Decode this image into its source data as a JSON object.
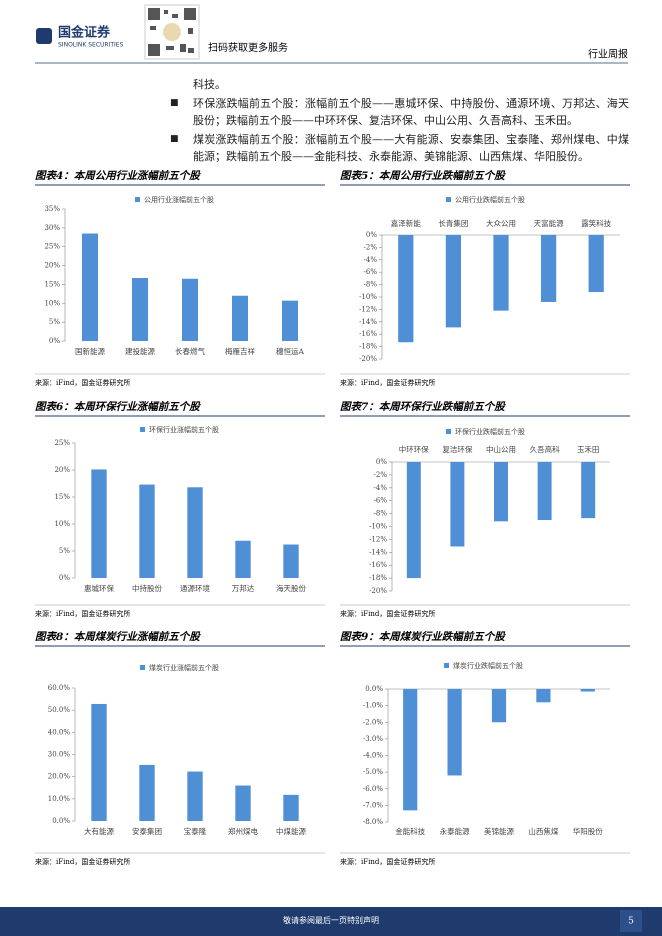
{
  "header": {
    "logo": "国金证券",
    "logo_en": "SINOLINK SECURITIES",
    "qr_caption": "扫码获取更多服务",
    "report_type": "行业周报"
  },
  "paragraphs": [
    "科技。",
    "环保涨跌幅前五个股：涨幅前五个股——惠城环保、中持股份、通源环境、万邦达、海天股份；跌幅前五个股——中环环保、复洁环保、中山公用、久吾高科、玉禾田。",
    "煤炭涨跌幅前五个股：涨幅前五个股——大有能源、安泰集团、宝泰隆、郑州煤电、中煤能源；跌幅前五个股——金能科技、永泰能源、美锦能源、山西焦煤、华阳股份。"
  ],
  "chart_data": [
    {
      "type": "bar",
      "title": "图表4：本周公用行业涨幅前五个股",
      "source": "来源：iFind，国金证券研究所",
      "categories": [
        "国新能源",
        "建投能源",
        "长春燃气",
        "梅雁吉祥",
        "穗恒运A"
      ],
      "series": [
        {
          "name": "公用行业涨幅前五个股",
          "color": "#4f8fd6",
          "values": [
            28.5,
            16.7,
            16.5,
            12.0,
            10.7
          ]
        }
      ],
      "ylim": [
        0,
        35
      ],
      "yticks": [
        {
          "value": 0,
          "label": "0%"
        },
        {
          "value": 5,
          "label": "5%"
        },
        {
          "value": 10,
          "label": "10%"
        },
        {
          "value": 15,
          "label": "15%"
        },
        {
          "value": 20,
          "label": "20%"
        },
        {
          "value": 25,
          "label": "25%"
        },
        {
          "value": 30,
          "label": "30%"
        },
        {
          "value": 35,
          "label": "35%"
        }
      ]
    },
    {
      "type": "bar",
      "title": "图表5：本周公用行业跌幅前五个股",
      "source": "来源：iFind，国金证券研究所",
      "categories": [
        "嘉泽新能",
        "长青集团",
        "大众公用",
        "天富能源",
        "露笑科技"
      ],
      "series": [
        {
          "name": "公用行业跌幅前五个股",
          "color": "#4f8fd6",
          "values": [
            -17.3,
            -14.9,
            -12.2,
            -10.8,
            -9.2
          ]
        }
      ],
      "ylim": [
        -20,
        0
      ],
      "yticks": [
        {
          "value": 0,
          "label": "0%"
        },
        {
          "value": -2,
          "label": "-2%"
        },
        {
          "value": -4,
          "label": "-4%"
        },
        {
          "value": -6,
          "label": "-6%"
        },
        {
          "value": -8,
          "label": "-8%"
        },
        {
          "value": -10,
          "label": "-10%"
        },
        {
          "value": -12,
          "label": "-12%"
        },
        {
          "value": -14,
          "label": "-14%"
        },
        {
          "value": -16,
          "label": "-16%"
        },
        {
          "value": -18,
          "label": "-18%"
        },
        {
          "value": -20,
          "label": "-20%"
        }
      ]
    },
    {
      "type": "bar",
      "title": "图表6：本周环保行业涨幅前五个股",
      "source": "来源：iFind，国金证券研究所",
      "categories": [
        "惠城环保",
        "中持股份",
        "通源环境",
        "万邦达",
        "海天股份"
      ],
      "series": [
        {
          "name": "环保行业涨幅前五个股",
          "color": "#4f8fd6",
          "values": [
            20.1,
            17.3,
            16.8,
            6.9,
            6.2
          ]
        }
      ],
      "ylim": [
        0,
        25
      ],
      "yticks": [
        {
          "value": 0,
          "label": "0%"
        },
        {
          "value": 5,
          "label": "5%"
        },
        {
          "value": 10,
          "label": "10%"
        },
        {
          "value": 15,
          "label": "15%"
        },
        {
          "value": 20,
          "label": "20%"
        },
        {
          "value": 25,
          "label": "25%"
        }
      ]
    },
    {
      "type": "bar",
      "title": "图表7：本周环保行业跌幅前五个股",
      "source": "来源：iFind，国金证券研究所",
      "categories": [
        "中环环保",
        "复洁环保",
        "中山公用",
        "久吾高科",
        "玉禾田"
      ],
      "series": [
        {
          "name": "环保行业跌幅前五个股",
          "color": "#4f8fd6",
          "values": [
            -18.0,
            -13.1,
            -9.2,
            -9.0,
            -8.7
          ]
        }
      ],
      "ylim": [
        -20,
        0
      ],
      "yticks": [
        {
          "value": 0,
          "label": "0%"
        },
        {
          "value": -2,
          "label": "-2%"
        },
        {
          "value": -4,
          "label": "-4%"
        },
        {
          "value": -6,
          "label": "-6%"
        },
        {
          "value": -8,
          "label": "-8%"
        },
        {
          "value": -10,
          "label": "-10%"
        },
        {
          "value": -12,
          "label": "-12%"
        },
        {
          "value": -14,
          "label": "-14%"
        },
        {
          "value": -16,
          "label": "-16%"
        },
        {
          "value": -18,
          "label": "-18%"
        },
        {
          "value": -20,
          "label": "-20%"
        }
      ]
    },
    {
      "type": "bar",
      "title": "图表8：本周煤炭行业涨幅前五个股",
      "source": "来源：iFind，国金证券研究所",
      "categories": [
        "大有能源",
        "安泰集团",
        "宝泰隆",
        "郑州煤电",
        "中煤能源"
      ],
      "series": [
        {
          "name": "煤炭行业涨幅前五个股",
          "color": "#4f8fd6",
          "values": [
            52.8,
            25.3,
            22.3,
            16.0,
            11.8
          ]
        }
      ],
      "ylim": [
        0,
        60
      ],
      "yticks": [
        {
          "value": 0,
          "label": "0.0%"
        },
        {
          "value": 10,
          "label": "10.0%"
        },
        {
          "value": 20,
          "label": "20.0%"
        },
        {
          "value": 30,
          "label": "30.0%"
        },
        {
          "value": 40,
          "label": "40.0%"
        },
        {
          "value": 50,
          "label": "50.0%"
        },
        {
          "value": 60,
          "label": "60.0%"
        }
      ]
    },
    {
      "type": "bar",
      "title": "图表9：本周煤炭行业跌幅前五个股",
      "source": "来源：iFind，国金证券研究所",
      "categories": [
        "金能科技",
        "永泰能源",
        "美锦能源",
        "山西焦煤",
        "华阳股份"
      ],
      "series": [
        {
          "name": "煤炭行业跌幅前五个股",
          "color": "#4f8fd6",
          "values": [
            -7.3,
            -5.2,
            -2.0,
            -0.8,
            -0.15
          ]
        }
      ],
      "ylim": [
        -8,
        0
      ],
      "yticks": [
        {
          "value": 0,
          "label": "0.0%"
        },
        {
          "value": -1,
          "label": "-1.0%"
        },
        {
          "value": -2,
          "label": "-2.0%"
        },
        {
          "value": -3,
          "label": "-3.0%"
        },
        {
          "value": -4,
          "label": "-4.0%"
        },
        {
          "value": -5,
          "label": "-5.0%"
        },
        {
          "value": -6,
          "label": "-6.0%"
        },
        {
          "value": -7,
          "label": "-7.0%"
        },
        {
          "value": -8,
          "label": "-8.0%"
        }
      ]
    }
  ],
  "footer": {
    "disclaimer": "敬请参阅最后一页特别声明",
    "page": "5"
  }
}
